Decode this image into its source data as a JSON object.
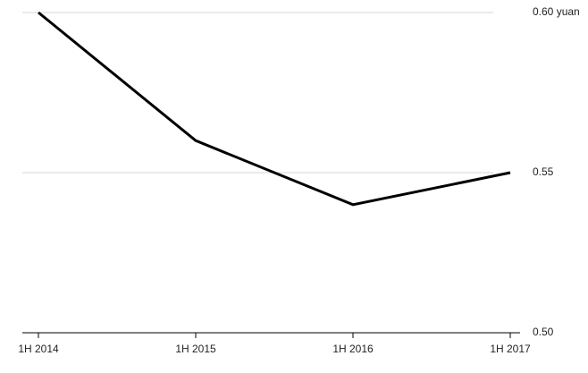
{
  "chart_data": {
    "type": "line",
    "categories": [
      "1H 2014",
      "1H 2015",
      "1H 2016",
      "1H 2017"
    ],
    "values": [
      0.6,
      0.56,
      0.54,
      0.55
    ],
    "color": "#000000",
    "ylim": [
      0.5,
      0.6
    ],
    "yticks": [
      {
        "value": 0.5,
        "label": "0.50"
      },
      0.55,
      {
        "value": 0.6,
        "label": "0.60 yuan"
      }
    ],
    "grid": true
  }
}
